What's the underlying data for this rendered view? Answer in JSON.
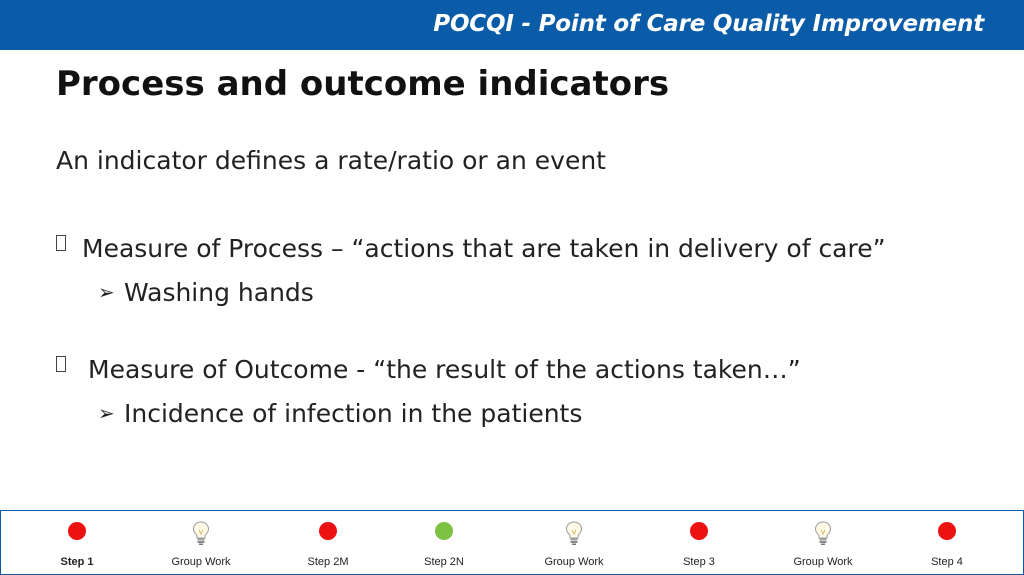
{
  "header": {
    "title": "POCQI - Point of Care Quality Improvement"
  },
  "slide": {
    "title": "Process and outcome indicators",
    "intro": "An indicator defines a rate/ratio or an event",
    "bullets": [
      {
        "text": "Measure of Process – “actions that are taken in delivery of care”",
        "sub": "Washing hands"
      },
      {
        "text": "Measure of Outcome - “the result of the actions taken…”",
        "sub": "Incidence of infection in the patients"
      }
    ]
  },
  "footer": {
    "steps": [
      {
        "label": "Step 1",
        "icon": "red-dot",
        "color": "#ee1111",
        "active": true
      },
      {
        "label": "Group Work",
        "icon": "lightbulb-icon"
      },
      {
        "label": "Step 2M",
        "icon": "red-dot",
        "color": "#ee1111"
      },
      {
        "label": "Step 2N",
        "icon": "green-dot",
        "color": "#7dc242"
      },
      {
        "label": "Group Work",
        "icon": "lightbulb-icon"
      },
      {
        "label": "Step 3",
        "icon": "red-dot",
        "color": "#ee1111"
      },
      {
        "label": "Group Work",
        "icon": "lightbulb-icon"
      },
      {
        "label": "Step 4",
        "icon": "red-dot",
        "color": "#ee1111"
      }
    ]
  },
  "colors": {
    "header_blue": "#0a5ca8"
  }
}
